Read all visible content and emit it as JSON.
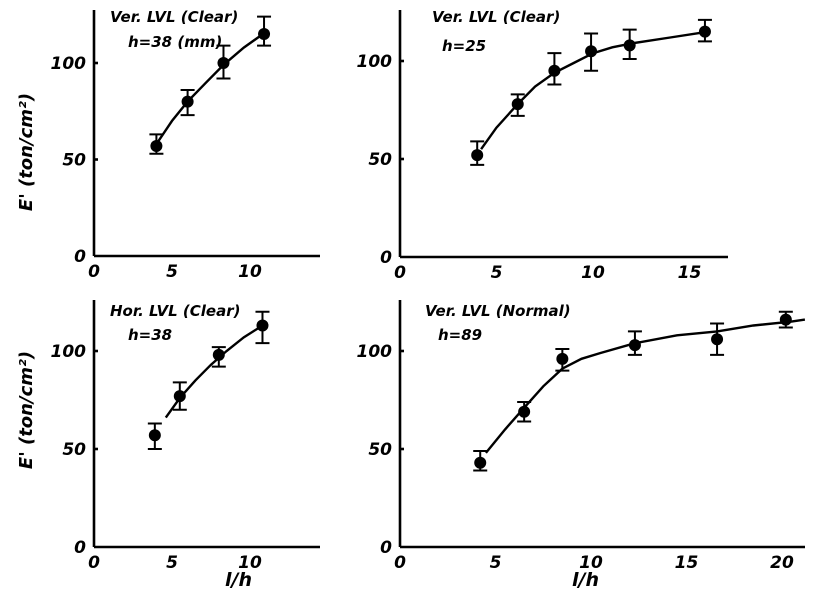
{
  "chart_data": [
    {
      "type": "scatter",
      "title": "Ver. LVL (Clear)",
      "subtitle": "h=38 (mm)",
      "ylabel": "E' (ton/cm²)",
      "xlabel": "",
      "xlim": [
        0,
        12
      ],
      "ylim": [
        0,
        125
      ],
      "xticks": [
        "0",
        "5",
        "10"
      ],
      "xtick_values": [
        0,
        5,
        10
      ],
      "yticks": [
        "0",
        "50",
        "100"
      ],
      "ytick_values": [
        0,
        50,
        100
      ],
      "points": [
        {
          "x": 4.0,
          "y": 57,
          "lo": 53,
          "hi": 63
        },
        {
          "x": 6.0,
          "y": 80,
          "lo": 73,
          "hi": 86
        },
        {
          "x": 8.3,
          "y": 100,
          "lo": 92,
          "hi": 109
        },
        {
          "x": 10.9,
          "y": 115,
          "lo": 109,
          "hi": 124
        }
      ],
      "curve": [
        [
          4.0,
          58
        ],
        [
          5.0,
          70
        ],
        [
          6.0,
          80
        ],
        [
          7.2,
          90
        ],
        [
          8.3,
          99
        ],
        [
          9.6,
          108
        ],
        [
          11.0,
          116
        ]
      ]
    },
    {
      "type": "scatter",
      "title": "Ver. LVL (Clear)",
      "subtitle": "h=25",
      "ylabel": "",
      "xlabel": "",
      "xlim": [
        0,
        17
      ],
      "ylim": [
        0,
        125
      ],
      "xticks": [
        "0",
        "5",
        "10",
        "15"
      ],
      "xtick_values": [
        0,
        5,
        10,
        15
      ],
      "yticks": [
        "0",
        "50",
        "100"
      ],
      "ytick_values": [
        0,
        50,
        100
      ],
      "points": [
        {
          "x": 4.0,
          "y": 52,
          "lo": 47,
          "hi": 59
        },
        {
          "x": 6.1,
          "y": 78,
          "lo": 72,
          "hi": 83
        },
        {
          "x": 8.0,
          "y": 95,
          "lo": 88,
          "hi": 104
        },
        {
          "x": 9.9,
          "y": 105,
          "lo": 95,
          "hi": 114
        },
        {
          "x": 11.9,
          "y": 108,
          "lo": 101,
          "hi": 116
        },
        {
          "x": 15.8,
          "y": 115,
          "lo": 110,
          "hi": 121
        }
      ],
      "curve": [
        [
          4.2,
          55
        ],
        [
          5.0,
          66
        ],
        [
          6.1,
          78
        ],
        [
          7.0,
          87
        ],
        [
          8.0,
          94
        ],
        [
          9.0,
          99
        ],
        [
          10.0,
          104
        ],
        [
          11.0,
          107
        ],
        [
          12.0,
          109
        ],
        [
          14.0,
          112
        ],
        [
          16.0,
          115
        ]
      ]
    },
    {
      "type": "scatter",
      "title": "Hor. LVL (Clear)",
      "subtitle": "h=38",
      "ylabel": "E' (ton/cm²)",
      "xlabel": "l/h",
      "xlim": [
        0,
        12
      ],
      "ylim": [
        0,
        125
      ],
      "xticks": [
        "0",
        "5",
        "10"
      ],
      "xtick_values": [
        0,
        5,
        10
      ],
      "yticks": [
        "0",
        "50",
        "100"
      ],
      "ytick_values": [
        0,
        50,
        100
      ],
      "points": [
        {
          "x": 3.9,
          "y": 57,
          "lo": 50,
          "hi": 63
        },
        {
          "x": 5.5,
          "y": 77,
          "lo": 70,
          "hi": 84
        },
        {
          "x": 8.0,
          "y": 98,
          "lo": 92,
          "hi": 102
        },
        {
          "x": 10.8,
          "y": 113,
          "lo": 104,
          "hi": 120
        }
      ],
      "curve": [
        [
          4.6,
          66
        ],
        [
          5.5,
          76
        ],
        [
          6.5,
          85
        ],
        [
          7.5,
          93
        ],
        [
          8.5,
          100
        ],
        [
          9.6,
          107
        ],
        [
          11.0,
          114
        ]
      ]
    },
    {
      "type": "scatter",
      "title": "Ver. LVL (Normal)",
      "subtitle": "h=89",
      "ylabel": "",
      "xlabel": "l/h",
      "xlim": [
        0,
        22
      ],
      "ylim": [
        0,
        125
      ],
      "xticks": [
        "0",
        "5",
        "10",
        "15",
        "20"
      ],
      "xtick_values": [
        0,
        5,
        10,
        15,
        20
      ],
      "yticks": [
        "0",
        "50",
        "100"
      ],
      "ytick_values": [
        0,
        50,
        100
      ],
      "points": [
        {
          "x": 4.2,
          "y": 43,
          "lo": 39,
          "hi": 49
        },
        {
          "x": 6.5,
          "y": 69,
          "lo": 64,
          "hi": 74
        },
        {
          "x": 8.5,
          "y": 96,
          "lo": 90,
          "hi": 101
        },
        {
          "x": 12.3,
          "y": 103,
          "lo": 98,
          "hi": 110
        },
        {
          "x": 16.6,
          "y": 106,
          "lo": 98,
          "hi": 114
        },
        {
          "x": 20.2,
          "y": 116,
          "lo": 112,
          "hi": 120
        }
      ],
      "curve": [
        [
          4.5,
          48
        ],
        [
          5.5,
          60
        ],
        [
          6.5,
          71
        ],
        [
          7.5,
          82
        ],
        [
          8.5,
          91
        ],
        [
          9.5,
          96
        ],
        [
          10.5,
          99
        ],
        [
          12.3,
          104
        ],
        [
          14.5,
          108
        ],
        [
          16.6,
          110
        ],
        [
          18.5,
          113
        ],
        [
          20.5,
          115
        ],
        [
          21.2,
          116
        ]
      ]
    }
  ]
}
